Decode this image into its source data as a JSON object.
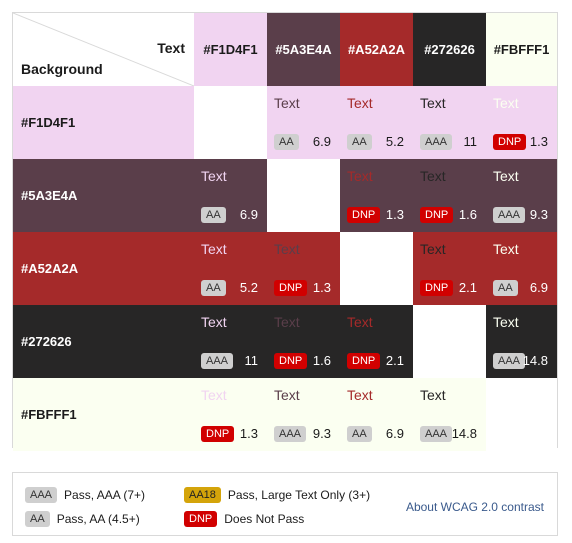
{
  "corner": {
    "foreground_label": "Text",
    "background_label": "Background"
  },
  "colors": [
    {
      "hex": "#F1D4F1",
      "bg": "#f1d4f1",
      "fg": "#1b1b1b"
    },
    {
      "hex": "#5A3E4A",
      "bg": "#5a3e4a",
      "fg": "#ffffff"
    },
    {
      "hex": "#A52A2A",
      "bg": "#a52a2a",
      "fg": "#ffffff"
    },
    {
      "hex": "#272626",
      "bg": "#272626",
      "fg": "#ffffff"
    },
    {
      "hex": "#FBFFF1",
      "bg": "#fbfff1",
      "fg": "#1b1b1b"
    }
  ],
  "cells": [
    [
      null,
      {
        "text": "Text",
        "rating": "AA",
        "ratio": "6.9"
      },
      {
        "text": "Text",
        "rating": "AA",
        "ratio": "5.2"
      },
      {
        "text": "Text",
        "rating": "AAA",
        "ratio": "11"
      },
      {
        "text": "Text",
        "rating": "DNP",
        "ratio": "1.3"
      }
    ],
    [
      {
        "text": "Text",
        "rating": "AA",
        "ratio": "6.9"
      },
      null,
      {
        "text": "Text",
        "rating": "DNP",
        "ratio": "1.3"
      },
      {
        "text": "Text",
        "rating": "DNP",
        "ratio": "1.6"
      },
      {
        "text": "Text",
        "rating": "AAA",
        "ratio": "9.3"
      }
    ],
    [
      {
        "text": "Text",
        "rating": "AA",
        "ratio": "5.2"
      },
      {
        "text": "Text",
        "rating": "DNP",
        "ratio": "1.3"
      },
      null,
      {
        "text": "Text",
        "rating": "DNP",
        "ratio": "2.1"
      },
      {
        "text": "Text",
        "rating": "AA",
        "ratio": "6.9"
      }
    ],
    [
      {
        "text": "Text",
        "rating": "AAA",
        "ratio": "11"
      },
      {
        "text": "Text",
        "rating": "DNP",
        "ratio": "1.6"
      },
      {
        "text": "Text",
        "rating": "DNP",
        "ratio": "2.1"
      },
      null,
      {
        "text": "Text",
        "rating": "AAA",
        "ratio": "14.8"
      }
    ],
    [
      {
        "text": "Text",
        "rating": "DNP",
        "ratio": "1.3"
      },
      {
        "text": "Text",
        "rating": "AAA",
        "ratio": "9.3"
      },
      {
        "text": "Text",
        "rating": "AA",
        "ratio": "6.9"
      },
      {
        "text": "Text",
        "rating": "AAA",
        "ratio": "14.8"
      },
      null
    ]
  ],
  "legend": {
    "aaa": {
      "badge": "AAA",
      "label": "Pass, AAA (7+)"
    },
    "aa": {
      "badge": "AA",
      "label": "Pass, AA (4.5+)"
    },
    "aa18": {
      "badge": "AA18",
      "label": "Pass, Large Text Only (3+)"
    },
    "dnp": {
      "badge": "DNP",
      "label": "Does Not Pass"
    },
    "about_link": "About WCAG 2.0 contrast"
  }
}
